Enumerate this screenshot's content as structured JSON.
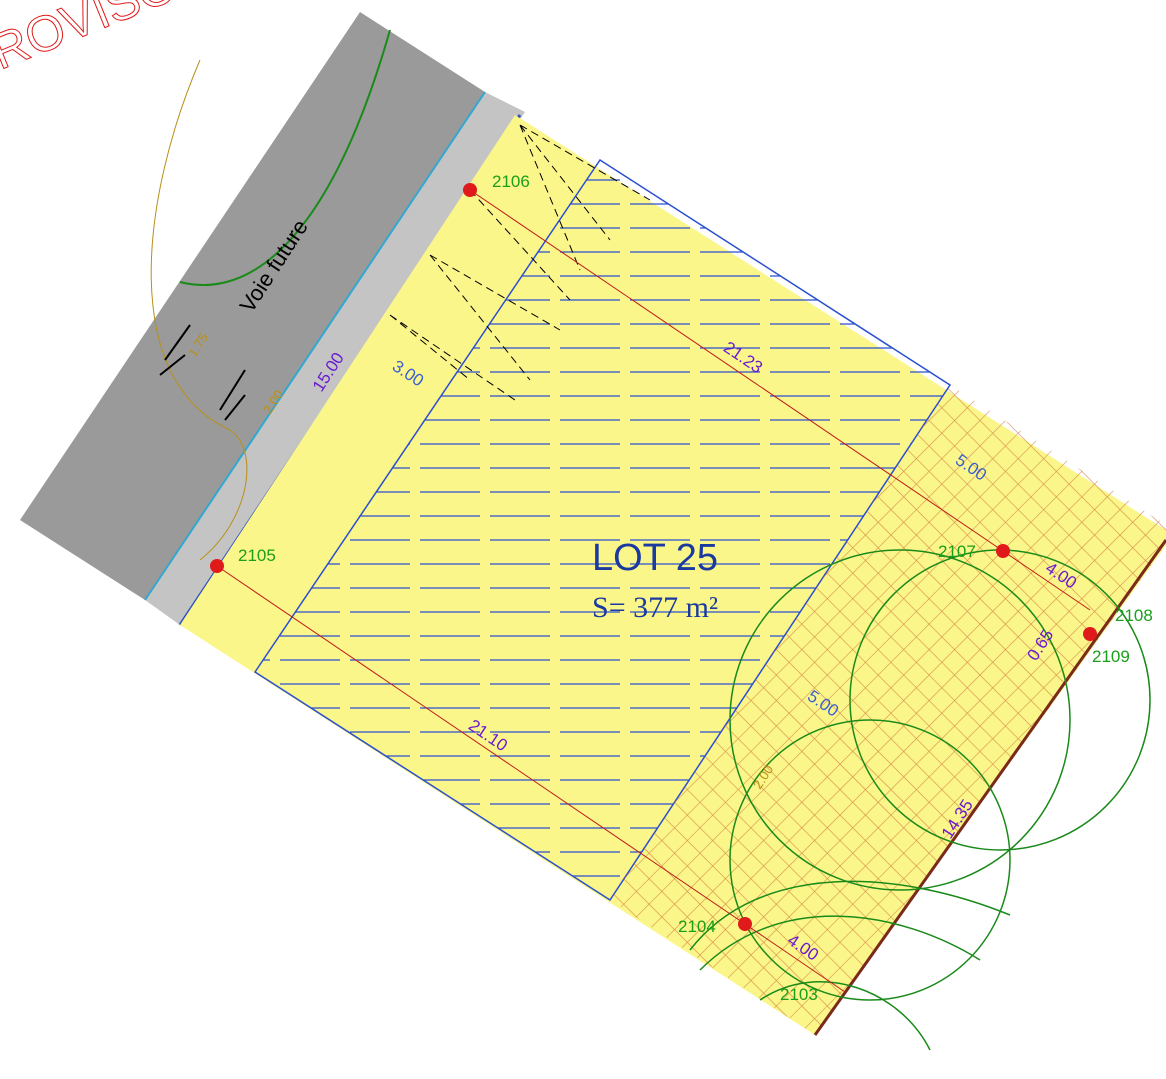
{
  "watermark": "ROVISO",
  "road": {
    "label": "Voie future",
    "contours": [
      "1.75",
      "2.00",
      "2.00"
    ]
  },
  "lot": {
    "name": "LOT 25",
    "area": "S= 377 m²"
  },
  "points": [
    "2106",
    "2105",
    "2107",
    "2108",
    "2109",
    "2104",
    "2103"
  ],
  "dimensions": [
    "15.00",
    "3.00",
    "21.23",
    "5.00",
    "4.00",
    "0.65",
    "5.00",
    "21.10",
    "14.35",
    "4.00"
  ]
}
